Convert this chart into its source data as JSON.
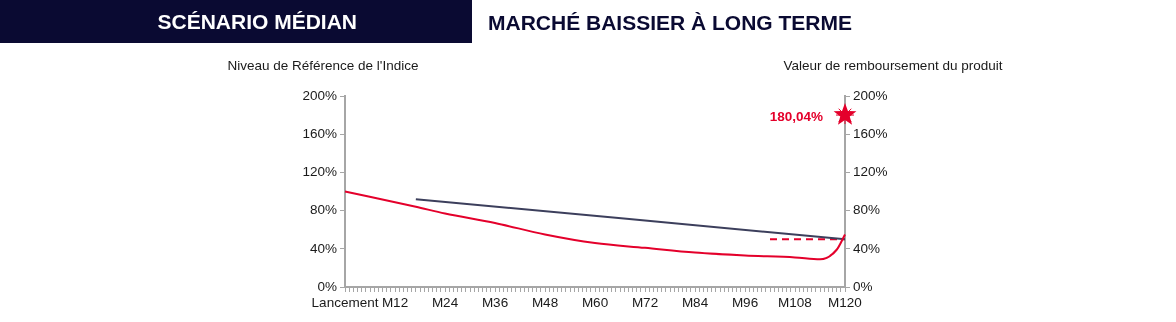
{
  "chart_data": {
    "type": "line",
    "title": "SCÉNARIO MÉDIAN",
    "subtitle": "MARCHÉ BAISSIER À LONG TERME",
    "ylabel": "Niveau de Référence de l'Indice",
    "y2label": "Valeur de remboursement du produit",
    "categories": [
      "Lancement",
      null,
      null,
      null,
      null,
      null,
      null,
      null,
      null,
      null,
      null,
      null,
      "M12",
      null,
      null,
      null,
      null,
      null,
      null,
      null,
      null,
      null,
      null,
      null,
      "M24",
      null,
      null,
      null,
      null,
      null,
      null,
      null,
      null,
      null,
      null,
      null,
      "M36",
      null,
      null,
      null,
      null,
      null,
      null,
      null,
      null,
      null,
      null,
      null,
      "M48",
      null,
      null,
      null,
      null,
      null,
      null,
      null,
      null,
      null,
      null,
      null,
      "M60",
      null,
      null,
      null,
      null,
      null,
      null,
      null,
      null,
      null,
      null,
      null,
      "M72",
      null,
      null,
      null,
      null,
      null,
      null,
      null,
      null,
      null,
      null,
      null,
      "M84",
      null,
      null,
      null,
      null,
      null,
      null,
      null,
      null,
      null,
      null,
      null,
      "M96",
      null,
      null,
      null,
      null,
      null,
      null,
      null,
      null,
      null,
      null,
      null,
      "M108",
      null,
      null,
      null,
      null,
      null,
      null,
      null,
      null,
      null,
      null,
      null,
      "M120"
    ],
    "ylim": [
      0,
      200
    ],
    "yticks": [
      {
        "value": 0,
        "label": "0%"
      },
      {
        "value": 40,
        "label": "40%"
      },
      {
        "value": 80,
        "label": "80%"
      },
      {
        "value": 120,
        "label": "120%"
      },
      {
        "value": 160,
        "label": "160%"
      },
      {
        "value": 200,
        "label": "200%"
      }
    ],
    "y2lim": [
      0,
      200
    ],
    "y2ticks": [
      {
        "value": 0,
        "label": "0%"
      },
      {
        "value": 40,
        "label": "40%"
      },
      {
        "value": 80,
        "label": "80%"
      },
      {
        "value": 120,
        "label": "120%"
      },
      {
        "value": 160,
        "label": "160%"
      },
      {
        "value": 200,
        "label": "200%"
      }
    ],
    "grid": false,
    "legend": false,
    "series": [
      {
        "color": "#e4002b",
        "values": [
          100,
          null,
          null,
          null,
          null,
          null,
          null,
          null,
          null,
          null,
          null,
          null,
          null,
          null,
          null,
          null,
          null,
          84,
          null,
          null,
          null,
          null,
          null,
          null,
          77,
          null,
          null,
          null,
          null,
          null,
          null,
          null,
          null,
          null,
          null,
          null,
          67,
          null,
          null,
          null,
          null,
          null,
          null,
          null,
          null,
          null,
          null,
          null,
          55,
          null,
          null,
          null,
          null,
          null,
          null,
          null,
          null,
          null,
          null,
          null,
          46,
          null,
          null,
          null,
          null,
          null,
          null,
          null,
          null,
          null,
          null,
          null,
          41,
          null,
          null,
          null,
          null,
          null,
          null,
          null,
          null,
          null,
          null,
          null,
          36,
          null,
          null,
          null,
          null,
          null,
          null,
          null,
          null,
          null,
          null,
          null,
          33,
          null,
          null,
          null,
          null,
          null,
          null,
          null,
          null,
          null,
          null,
          null,
          31,
          null,
          null,
          null,
          null,
          null,
          29,
          null,
          null,
          null,
          39,
          null,
          55
        ]
      },
      {
        "type": "line",
        "color": "#3c3f5c",
        "axis": "y2",
        "values": [
          null,
          null,
          null,
          null,
          null,
          null,
          null,
          null,
          null,
          null,
          null,
          null,
          null,
          null,
          null,
          null,
          null,
          92,
          null,
          null,
          null,
          null,
          null,
          null,
          null,
          null,
          null,
          null,
          null,
          null,
          null,
          null,
          null,
          null,
          null,
          null,
          null,
          null,
          null,
          null,
          null,
          null,
          null,
          null,
          null,
          null,
          null,
          null,
          null,
          null,
          null,
          null,
          null,
          null,
          null,
          null,
          null,
          null,
          null,
          null,
          null,
          null,
          null,
          null,
          null,
          null,
          null,
          null,
          null,
          null,
          null,
          null,
          null,
          null,
          null,
          null,
          null,
          null,
          null,
          null,
          null,
          null,
          null,
          null,
          null,
          null,
          null,
          null,
          null,
          null,
          null,
          null,
          null,
          null,
          null,
          null,
          null,
          null,
          null,
          null,
          null,
          null,
          null,
          null,
          null,
          null,
          null,
          null,
          null,
          null,
          null,
          null,
          null,
          null,
          null,
          null,
          null,
          null,
          null,
          null,
          50
        ]
      },
      {
        "type": "line",
        "color": "#e4002b",
        "line_style": "dashed",
        "axis": "y2",
        "values": [
          null,
          null,
          null,
          null,
          null,
          null,
          null,
          null,
          null,
          null,
          null,
          null,
          null,
          null,
          null,
          null,
          null,
          null,
          null,
          null,
          null,
          null,
          null,
          null,
          null,
          null,
          null,
          null,
          null,
          null,
          null,
          null,
          null,
          null,
          null,
          null,
          null,
          null,
          null,
          null,
          null,
          null,
          null,
          null,
          null,
          null,
          null,
          null,
          null,
          null,
          null,
          null,
          null,
          null,
          null,
          null,
          null,
          null,
          null,
          null,
          null,
          null,
          null,
          null,
          null,
          null,
          null,
          null,
          null,
          null,
          null,
          null,
          null,
          null,
          null,
          null,
          null,
          null,
          null,
          null,
          null,
          null,
          null,
          null,
          null,
          null,
          null,
          null,
          null,
          null,
          null,
          null,
          null,
          null,
          null,
          null,
          null,
          null,
          null,
          null,
          null,
          null,
          50,
          null,
          null,
          null,
          null,
          null,
          null,
          null,
          null,
          null,
          null,
          null,
          null,
          null,
          null,
          null,
          null,
          null,
          50
        ]
      },
      {
        "type": "scatter",
        "color": "#e4002b",
        "marker": "star",
        "axis": "y2",
        "values": [
          null,
          null,
          null,
          null,
          null,
          null,
          null,
          null,
          null,
          null,
          null,
          null,
          null,
          null,
          null,
          null,
          null,
          null,
          null,
          null,
          null,
          null,
          null,
          null,
          null,
          null,
          null,
          null,
          null,
          null,
          null,
          null,
          null,
          null,
          null,
          null,
          null,
          null,
          null,
          null,
          null,
          null,
          null,
          null,
          null,
          null,
          null,
          null,
          null,
          null,
          null,
          null,
          null,
          null,
          null,
          null,
          null,
          null,
          null,
          null,
          null,
          null,
          null,
          null,
          null,
          null,
          null,
          null,
          null,
          null,
          null,
          null,
          null,
          null,
          null,
          null,
          null,
          null,
          null,
          null,
          null,
          null,
          null,
          null,
          null,
          null,
          null,
          null,
          null,
          null,
          null,
          null,
          null,
          null,
          null,
          null,
          null,
          null,
          null,
          null,
          null,
          null,
          null,
          null,
          null,
          null,
          null,
          null,
          null,
          null,
          null,
          null,
          null,
          null,
          null,
          null,
          null,
          null,
          null,
          null,
          180.04
        ],
        "value_labels": [
          null,
          null,
          null,
          null,
          null,
          null,
          null,
          null,
          null,
          null,
          null,
          null,
          null,
          null,
          null,
          null,
          null,
          null,
          null,
          null,
          null,
          null,
          null,
          null,
          null,
          null,
          null,
          null,
          null,
          null,
          null,
          null,
          null,
          null,
          null,
          null,
          null,
          null,
          null,
          null,
          null,
          null,
          null,
          null,
          null,
          null,
          null,
          null,
          null,
          null,
          null,
          null,
          null,
          null,
          null,
          null,
          null,
          null,
          null,
          null,
          null,
          null,
          null,
          null,
          null,
          null,
          null,
          null,
          null,
          null,
          null,
          null,
          null,
          null,
          null,
          null,
          null,
          null,
          null,
          null,
          null,
          null,
          null,
          null,
          null,
          null,
          null,
          null,
          null,
          null,
          null,
          null,
          null,
          null,
          null,
          null,
          null,
          null,
          null,
          null,
          null,
          null,
          null,
          null,
          null,
          null,
          null,
          null,
          null,
          null,
          null,
          null,
          null,
          null,
          null,
          null,
          null,
          null,
          null,
          null,
          "180,04%"
        ]
      }
    ]
  }
}
